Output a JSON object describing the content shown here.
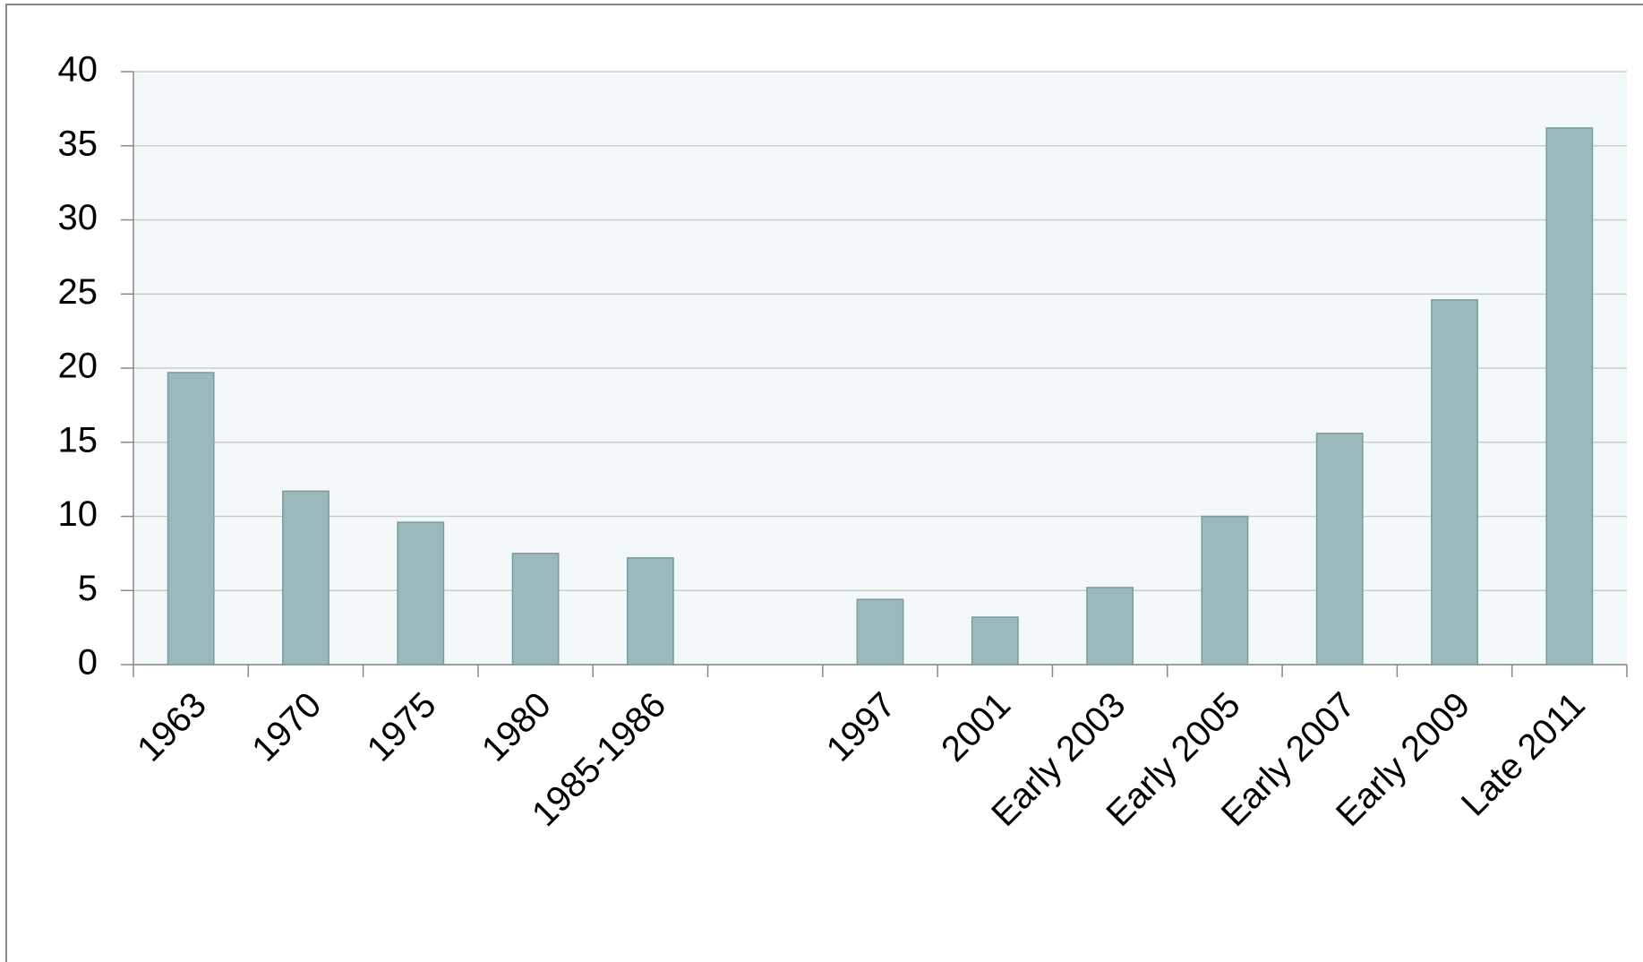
{
  "chart_data": {
    "type": "bar",
    "categories": [
      "1963",
      "1970",
      "1975",
      "1980",
      "1985-1986",
      null,
      "1997",
      "2001",
      "Early 2003",
      "Early 2005",
      "Early 2007",
      "Early 2009",
      "Late 2011"
    ],
    "values": [
      19.7,
      11.7,
      9.6,
      7.5,
      7.2,
      null,
      4.4,
      3.2,
      5.2,
      10,
      15.6,
      24.6,
      36.2
    ],
    "color": "#9bb9ba",
    "ylim": [
      0,
      40
    ],
    "yticks": [
      0,
      5,
      10,
      15,
      20,
      25,
      30,
      35,
      40
    ],
    "grid": true
  }
}
